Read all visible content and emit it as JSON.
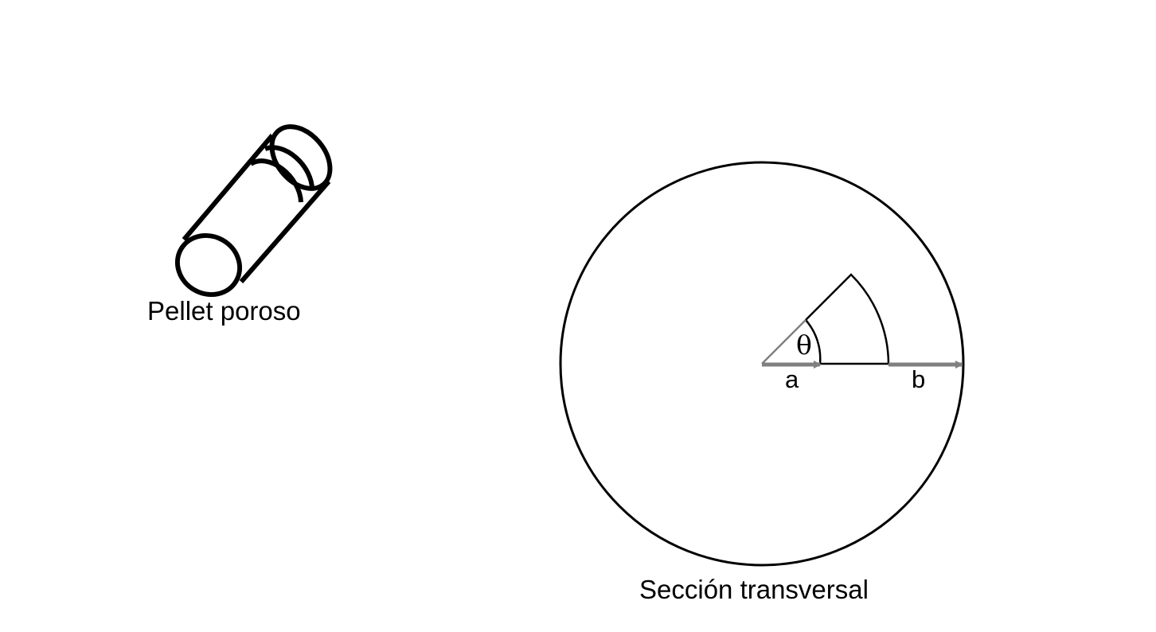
{
  "pellet": {
    "caption": "Pellet poroso"
  },
  "cross_section": {
    "caption": "Sección transversal",
    "angle_symbol": "θ",
    "inner_radius_label": "a",
    "outer_radius_label": "b"
  },
  "colors": {
    "stroke": "#000000",
    "arrow": "#808080",
    "background": "#ffffff"
  }
}
